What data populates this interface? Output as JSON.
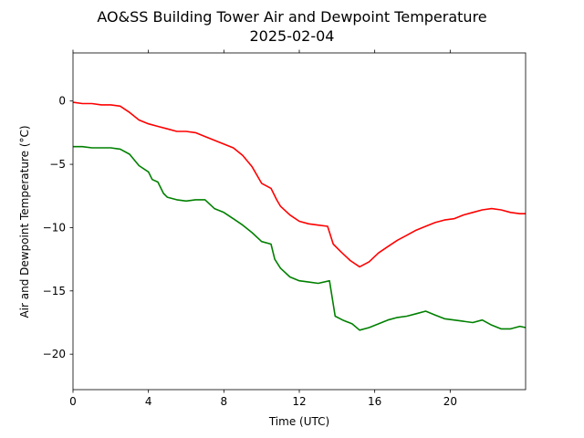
{
  "chart_data": {
    "type": "line",
    "title": "AO&SS Building Tower Air and Dewpoint Temperature",
    "subtitle": "2025-02-04",
    "xlabel": "Time (UTC)",
    "ylabel": "Air and Dewpoint Temperature (°C)",
    "xlim": [
      0,
      24
    ],
    "ylim": [
      -22.8,
      3.8
    ],
    "xticks": [
      0,
      4,
      8,
      12,
      16,
      20
    ],
    "yticks": [
      0,
      -5,
      -10,
      -15,
      -20
    ],
    "grid": false,
    "legend": "none",
    "series": [
      {
        "color": "#ff0000",
        "x": [
          0,
          0.5,
          1,
          1.5,
          2,
          2.5,
          3,
          3.5,
          4,
          4.5,
          5,
          5.5,
          6,
          6.5,
          7,
          7.5,
          8,
          8.5,
          9,
          9.5,
          10,
          10.5,
          10.8,
          11,
          11.5,
          12,
          12.5,
          13,
          13.5,
          13.8,
          14.2,
          14.7,
          15.2,
          15.7,
          16.2,
          16.7,
          17.2,
          17.7,
          18.2,
          18.7,
          19.2,
          19.7,
          20.2,
          20.7,
          21.2,
          21.7,
          22.2,
          22.7,
          23.2,
          23.7,
          24
        ],
        "y": [
          -0.1,
          -0.2,
          -0.2,
          -0.3,
          -0.3,
          -0.4,
          -0.9,
          -1.5,
          -1.8,
          -2.0,
          -2.2,
          -2.4,
          -2.4,
          -2.5,
          -2.8,
          -3.1,
          -3.4,
          -3.7,
          -4.3,
          -5.2,
          -6.5,
          -6.9,
          -7.8,
          -8.3,
          -9.0,
          -9.5,
          -9.7,
          -9.8,
          -9.9,
          -11.3,
          -11.9,
          -12.6,
          -13.1,
          -12.7,
          -12.0,
          -11.5,
          -11.0,
          -10.6,
          -10.2,
          -9.9,
          -9.6,
          -9.4,
          -9.3,
          -9.0,
          -8.8,
          -8.6,
          -8.5,
          -8.6,
          -8.8,
          -8.9,
          -8.9
        ]
      },
      {
        "color": "#008000",
        "x": [
          0,
          0.5,
          1,
          1.5,
          2,
          2.5,
          3,
          3.5,
          4,
          4.2,
          4.5,
          4.8,
          5,
          5.5,
          6,
          6.5,
          7,
          7.5,
          8,
          8.5,
          9,
          9.5,
          10,
          10.5,
          10.7,
          11,
          11.5,
          12,
          12.5,
          13,
          13.6,
          13.9,
          14.3,
          14.8,
          15.2,
          15.7,
          16.2,
          16.7,
          17.2,
          17.7,
          18.2,
          18.7,
          19.2,
          19.7,
          20.2,
          20.7,
          21.2,
          21.7,
          22.2,
          22.7,
          23.2,
          23.7,
          24
        ],
        "y": [
          -3.6,
          -3.6,
          -3.7,
          -3.7,
          -3.7,
          -3.8,
          -4.2,
          -5.1,
          -5.6,
          -6.2,
          -6.4,
          -7.3,
          -7.6,
          -7.8,
          -7.9,
          -7.8,
          -7.8,
          -8.5,
          -8.8,
          -9.3,
          -9.8,
          -10.4,
          -11.1,
          -11.3,
          -12.5,
          -13.2,
          -13.9,
          -14.2,
          -14.3,
          -14.4,
          -14.2,
          -17.0,
          -17.3,
          -17.6,
          -18.1,
          -17.9,
          -17.6,
          -17.3,
          -17.1,
          -17.0,
          -16.8,
          -16.6,
          -16.9,
          -17.2,
          -17.3,
          -17.4,
          -17.5,
          -17.3,
          -17.7,
          -18.0,
          -18.0,
          -17.8,
          -17.9
        ]
      }
    ]
  }
}
